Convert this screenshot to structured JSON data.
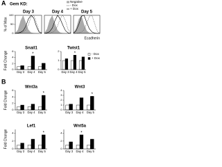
{
  "labels": {
    "panel_a": "A",
    "panel_b": "B",
    "gem_kd": "Gem KD:"
  },
  "chart_data": [
    {
      "type": "area",
      "title": "Day 3",
      "ylabel": "% of Max",
      "legend": "top",
      "ylim": [
        0,
        100
      ],
      "yticks": [
        0,
        50,
        100
      ],
      "xlim": [
        0,
        10
      ],
      "x": [
        0,
        1,
        2,
        3,
        4,
        5,
        6,
        7,
        8,
        9,
        10
      ],
      "series": [
        {
          "name": "Negative",
          "color": "#aaaaaa",
          "fill": true,
          "values": [
            2,
            20,
            70,
            100,
            60,
            20,
            5,
            2,
            1,
            0,
            0
          ]
        },
        {
          "name": "- Dox",
          "color": "#666666",
          "dash": true,
          "values": [
            0,
            1,
            3,
            8,
            20,
            50,
            90,
            100,
            60,
            15,
            2
          ]
        },
        {
          "name": "+ Dox",
          "color": "#000000",
          "values": [
            0,
            2,
            6,
            15,
            40,
            80,
            100,
            85,
            40,
            8,
            1
          ]
        }
      ]
    },
    {
      "type": "area",
      "title": "Day 4",
      "ylim": [
        0,
        100
      ],
      "xlim": [
        0,
        10
      ],
      "x": [
        0,
        1,
        2,
        3,
        4,
        5,
        6,
        7,
        8,
        9,
        10
      ],
      "series": [
        {
          "name": "Negative",
          "color": "#aaaaaa",
          "fill": true,
          "values": [
            2,
            25,
            75,
            100,
            55,
            18,
            5,
            2,
            1,
            0,
            0
          ]
        },
        {
          "name": "- Dox",
          "color": "#666666",
          "dash": true,
          "values": [
            0,
            1,
            2,
            6,
            15,
            40,
            85,
            100,
            70,
            20,
            3
          ]
        },
        {
          "name": "+ Dox",
          "color": "#000000",
          "values": [
            0,
            3,
            10,
            30,
            70,
            100,
            80,
            45,
            15,
            3,
            0
          ]
        }
      ]
    },
    {
      "type": "area",
      "title": "Day 5",
      "xlabel": "Ecadherin",
      "ylim": [
        0,
        100
      ],
      "xlim": [
        0,
        10
      ],
      "x": [
        0,
        1,
        2,
        3,
        4,
        5,
        6,
        7,
        8,
        9,
        10
      ],
      "series": [
        {
          "name": "Negative",
          "color": "#aaaaaa",
          "fill": true,
          "values": [
            3,
            30,
            80,
            100,
            50,
            15,
            4,
            1,
            0,
            0,
            0
          ]
        },
        {
          "name": "- Dox",
          "color": "#666666",
          "dash": true,
          "values": [
            0,
            1,
            3,
            8,
            20,
            55,
            95,
            100,
            55,
            12,
            1
          ]
        },
        {
          "name": "+ Dox",
          "color": "#000000",
          "values": [
            2,
            15,
            50,
            95,
            100,
            60,
            25,
            8,
            2,
            0,
            0
          ]
        }
      ]
    },
    {
      "type": "bar",
      "title": "Snail1",
      "ylabel": "Fold Change",
      "annotation": "*",
      "ylim": [
        0,
        6
      ],
      "yticks": [
        0,
        2,
        4,
        6
      ],
      "categories": [
        "Day 3",
        "Day 4",
        "Day 5"
      ],
      "series": [
        {
          "name": "- Dox",
          "color": "#ffffff",
          "values": [
            1,
            1,
            1
          ]
        },
        {
          "name": "+ Dox",
          "color": "#000000",
          "values": [
            1.3,
            4.5,
            2.1
          ]
        }
      ]
    },
    {
      "type": "bar",
      "title": "Twist1",
      "legend": "right",
      "annotation": "*",
      "ylim": [
        0,
        2
      ],
      "yticks": [
        0,
        1,
        2
      ],
      "categories": [
        "Day 3",
        "Day 4",
        "Day 5"
      ],
      "series": [
        {
          "name": "- Dox",
          "color": "#ffffff",
          "values": [
            1,
            1,
            1
          ]
        },
        {
          "name": "+ Dox",
          "color": "#000000",
          "values": [
            1.2,
            1.6,
            1.4
          ]
        }
      ]
    },
    {
      "type": "bar",
      "title": "Wnt3a",
      "ylabel": "Fold Change",
      "annotation": "*",
      "ylim": [
        0,
        6
      ],
      "yticks": [
        0,
        2,
        4,
        6
      ],
      "categories": [
        "Day 3",
        "Day 4",
        "Day 5"
      ],
      "series": [
        {
          "name": "- Dox",
          "color": "#ffffff",
          "values": [
            1,
            1,
            1
          ]
        },
        {
          "name": "+ Dox",
          "color": "#000000",
          "values": [
            1.5,
            1.8,
            4.5
          ]
        }
      ]
    },
    {
      "type": "bar",
      "title": "Wnt3",
      "annotation": "*",
      "ylim": [
        0,
        4
      ],
      "yticks": [
        0,
        1,
        2,
        3,
        4
      ],
      "categories": [
        "Day 3",
        "Day 4",
        "Day 5"
      ],
      "series": [
        {
          "name": "- Dox",
          "color": "#ffffff",
          "values": [
            1,
            1,
            1
          ]
        },
        {
          "name": "+ Dox",
          "color": "#000000",
          "values": [
            1.2,
            2.5,
            2.8
          ]
        }
      ]
    },
    {
      "type": "bar",
      "title": "Lef1",
      "ylabel": "Fold Change",
      "annotation": "*",
      "ylim": [
        0,
        5
      ],
      "yticks": [
        0,
        2,
        4
      ],
      "categories": [
        "Day 3",
        "Day 4",
        "Day 5"
      ],
      "series": [
        {
          "name": "- Dox",
          "color": "#ffffff",
          "values": [
            1,
            1,
            1
          ]
        },
        {
          "name": "+ Dox",
          "color": "#000000",
          "values": [
            1.5,
            2.5,
            3.6
          ]
        }
      ]
    },
    {
      "type": "bar",
      "title": "Wnt5a",
      "annotation": "*",
      "ylim": [
        0,
        5
      ],
      "yticks": [
        0,
        2,
        4
      ],
      "categories": [
        "Day 3",
        "Day 4",
        "Day 5"
      ],
      "series": [
        {
          "name": "- Dox",
          "color": "#ffffff",
          "values": [
            1,
            1,
            1
          ]
        },
        {
          "name": "+ Dox",
          "color": "#000000",
          "values": [
            1.8,
            3.6,
            2.5
          ]
        }
      ]
    }
  ]
}
